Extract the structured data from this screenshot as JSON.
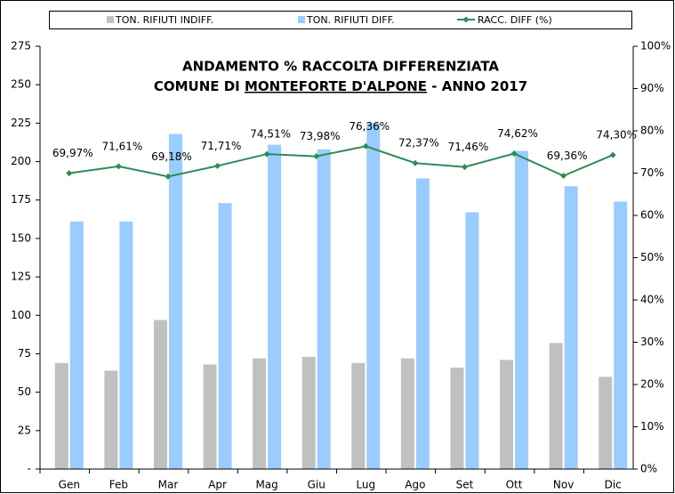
{
  "chart_data": {
    "type": "bar",
    "title": "ANDAMENTO % RACCOLTA DIFFERENZIATA",
    "subtitle": [
      "COMUNE DI ",
      "MONTEFORTE D'ALPONE",
      " - ANNO 2017"
    ],
    "categories": [
      "Gen",
      "Feb",
      "Mar",
      "Apr",
      "Mag",
      "Giu",
      "Lug",
      "Ago",
      "Set",
      "Ott",
      "Nov",
      "Dic"
    ],
    "series": [
      {
        "name": "TON. RIFIUTI INDIFF.",
        "color": "#c0c0c0",
        "type": "bar",
        "values": [
          69,
          64,
          97,
          68,
          72,
          73,
          69,
          72,
          66,
          71,
          82,
          60
        ]
      },
      {
        "name": "TON. RIFIUTI DIFF.",
        "color": "#99ccff",
        "type": "bar",
        "values": [
          161,
          161,
          218,
          173,
          211,
          208,
          225,
          189,
          167,
          207,
          184,
          174
        ]
      },
      {
        "name": "RACC. DIFF (%)",
        "color": "#2e8b57",
        "type": "line",
        "axis": "y2",
        "values": [
          69.97,
          71.61,
          69.18,
          71.71,
          74.51,
          73.98,
          76.36,
          72.37,
          71.46,
          74.62,
          69.36,
          74.3
        ],
        "value_labels": [
          "69,97%",
          "71,61%",
          "69,18%",
          "71,71%",
          "74,51%",
          "73,98%",
          "76,36%",
          "72,37%",
          "71,46%",
          "74,62%",
          "69,36%",
          "74,30%"
        ]
      }
    ],
    "ylim": [
      0,
      275
    ],
    "yticks": [
      {
        "value": 0,
        "label": "-"
      },
      25,
      50,
      75,
      100,
      125,
      150,
      175,
      200,
      225,
      250,
      275
    ],
    "y2lim": [
      0,
      100
    ],
    "y2ticks": [
      {
        "value": 0,
        "label": "0%"
      },
      {
        "value": 10,
        "label": "10%"
      },
      {
        "value": 20,
        "label": "20%"
      },
      {
        "value": 30,
        "label": "30%"
      },
      {
        "value": 40,
        "label": "40%"
      },
      {
        "value": 50,
        "label": "50%"
      },
      {
        "value": 60,
        "label": "60%"
      },
      {
        "value": 70,
        "label": "70%"
      },
      {
        "value": 80,
        "label": "80%"
      },
      {
        "value": 90,
        "label": "90%"
      },
      {
        "value": 100,
        "label": "100%"
      }
    ],
    "legend": "top"
  }
}
